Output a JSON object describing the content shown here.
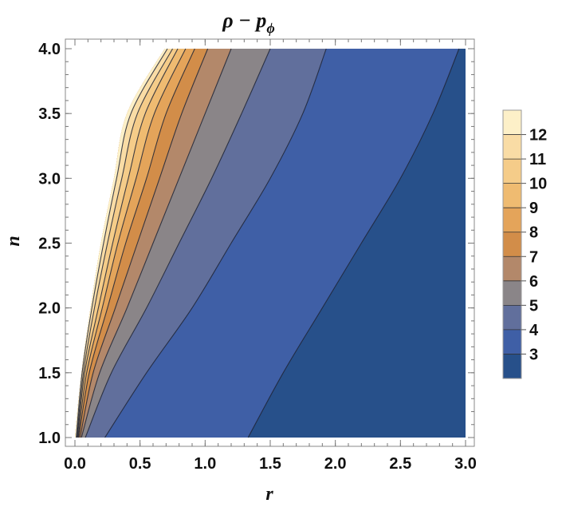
{
  "chart_data": {
    "type": "contour",
    "title": "ρ − p",
    "title_subscript": "ϕ",
    "xlabel": "r",
    "ylabel": "n",
    "xlim": [
      0.0,
      3.0
    ],
    "ylim": [
      1.0,
      4.0
    ],
    "x_ticks": [
      "0.0",
      "0.5",
      "1.0",
      "1.5",
      "2.0",
      "2.5",
      "3.0"
    ],
    "y_ticks": [
      "1.0",
      "1.5",
      "2.0",
      "2.5",
      "3.0",
      "3.5",
      "4.0"
    ],
    "legend_levels": [
      "12",
      "11",
      "10",
      "9",
      "8",
      "7",
      "6",
      "5",
      "4",
      "3"
    ],
    "contours": [
      {
        "level": 3,
        "points": [
          [
            1.33,
            1.0
          ],
          [
            1.6,
            1.5
          ],
          [
            1.9,
            2.0
          ],
          [
            2.2,
            2.5
          ],
          [
            2.5,
            3.0
          ],
          [
            2.75,
            3.5
          ],
          [
            2.95,
            4.0
          ]
        ]
      },
      {
        "level": 4,
        "points": [
          [
            0.23,
            1.0
          ],
          [
            0.55,
            1.5
          ],
          [
            0.9,
            2.0
          ],
          [
            1.2,
            2.5
          ],
          [
            1.5,
            3.0
          ],
          [
            1.75,
            3.5
          ],
          [
            1.93,
            4.0
          ]
        ]
      },
      {
        "level": 5,
        "points": [
          [
            0.08,
            1.0
          ],
          [
            0.28,
            1.5
          ],
          [
            0.55,
            2.0
          ],
          [
            0.8,
            2.5
          ],
          [
            1.05,
            3.0
          ],
          [
            1.28,
            3.5
          ],
          [
            1.5,
            4.0
          ]
        ]
      },
      {
        "level": 6,
        "points": [
          [
            0.05,
            1.0
          ],
          [
            0.19,
            1.5
          ],
          [
            0.4,
            2.0
          ],
          [
            0.6,
            2.5
          ],
          [
            0.8,
            3.0
          ],
          [
            1.0,
            3.5
          ],
          [
            1.2,
            4.0
          ]
        ]
      },
      {
        "level": 7,
        "points": [
          [
            0.04,
            1.0
          ],
          [
            0.14,
            1.5
          ],
          [
            0.31,
            2.0
          ],
          [
            0.48,
            2.5
          ],
          [
            0.65,
            3.0
          ],
          [
            0.82,
            3.5
          ],
          [
            1.02,
            4.0
          ]
        ]
      },
      {
        "level": 8,
        "points": [
          [
            0.03,
            1.0
          ],
          [
            0.11,
            1.5
          ],
          [
            0.25,
            2.0
          ],
          [
            0.39,
            2.5
          ],
          [
            0.55,
            3.0
          ],
          [
            0.7,
            3.5
          ],
          [
            0.92,
            4.0
          ]
        ]
      },
      {
        "level": 9,
        "points": [
          [
            0.025,
            1.0
          ],
          [
            0.09,
            1.5
          ],
          [
            0.21,
            2.0
          ],
          [
            0.33,
            2.5
          ],
          [
            0.47,
            3.0
          ],
          [
            0.61,
            3.5
          ],
          [
            0.85,
            4.0
          ]
        ]
      },
      {
        "level": 10,
        "points": [
          [
            0.02,
            1.0
          ],
          [
            0.075,
            1.5
          ],
          [
            0.18,
            2.0
          ],
          [
            0.29,
            2.5
          ],
          [
            0.41,
            3.0
          ],
          [
            0.54,
            3.5
          ],
          [
            0.79,
            4.0
          ]
        ]
      },
      {
        "level": 11,
        "points": [
          [
            0.015,
            1.0
          ],
          [
            0.065,
            1.5
          ],
          [
            0.15,
            2.0
          ],
          [
            0.25,
            2.5
          ],
          [
            0.36,
            3.0
          ],
          [
            0.48,
            3.5
          ],
          [
            0.75,
            4.0
          ]
        ]
      },
      {
        "level": 12,
        "points": [
          [
            0.01,
            1.0
          ],
          [
            0.055,
            1.5
          ],
          [
            0.13,
            2.0
          ],
          [
            0.22,
            2.5
          ],
          [
            0.32,
            3.0
          ],
          [
            0.43,
            3.5
          ],
          [
            0.71,
            4.0
          ]
        ]
      }
    ],
    "left_boundary": [
      [
        0.0,
        1.0
      ],
      [
        0.05,
        1.5
      ],
      [
        0.12,
        2.0
      ],
      [
        0.2,
        2.5
      ],
      [
        0.3,
        3.0
      ],
      [
        0.4,
        3.5
      ],
      [
        0.69,
        4.0
      ]
    ],
    "colors": {
      "below_3": "#27508a",
      "3_to_4": "#3f5fa6",
      "4_to_5": "#616f9c",
      "5_to_6": "#8a8588",
      "6_to_7": "#b3886a",
      "7_to_8": "#d28d49",
      "8_to_9": "#e4a45a",
      "9_to_10": "#efbb71",
      "10_to_11": "#f5cc89",
      "11_to_12": "#f9dca5",
      "above_12": "#fdf0c8"
    }
  }
}
